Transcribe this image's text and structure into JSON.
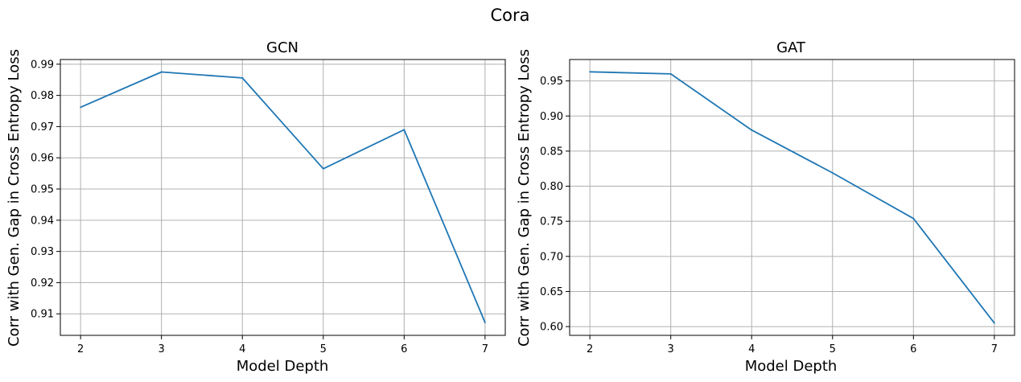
{
  "figure": {
    "title": "Cora"
  },
  "colors": {
    "series": "#1f77b4",
    "grid": "#b0b0b0"
  },
  "chart_data": [
    {
      "type": "line",
      "title": "GCN",
      "xlabel": "Model Depth",
      "ylabel": "Corr with Gen. Gap in Cross Entropy Loss",
      "x": [
        2,
        3,
        4,
        5,
        6,
        7
      ],
      "values": [
        0.9762,
        0.9875,
        0.9856,
        0.9565,
        0.969,
        0.9072
      ],
      "xlim": [
        1.75,
        7.25
      ],
      "ylim": [
        0.9031,
        0.9915
      ],
      "xticks": [
        2,
        3,
        4,
        5,
        6,
        7
      ],
      "yticks": [
        0.91,
        0.92,
        0.93,
        0.94,
        0.95,
        0.96,
        0.97,
        0.98,
        0.99
      ],
      "ytick_labels": [
        "0.91",
        "0.92",
        "0.93",
        "0.94",
        "0.95",
        "0.96",
        "0.97",
        "0.98",
        "0.99"
      ],
      "grid": true
    },
    {
      "type": "line",
      "title": "GAT",
      "xlabel": "Model Depth",
      "ylabel": "Corr with Gen. Gap in Cross Entropy Loss",
      "x": [
        2,
        3,
        4,
        5,
        6,
        7
      ],
      "values": [
        0.963,
        0.96,
        0.88,
        0.819,
        0.754,
        0.605
      ],
      "xlim": [
        1.75,
        7.25
      ],
      "ylim": [
        0.5875,
        0.9805
      ],
      "xticks": [
        2,
        3,
        4,
        5,
        6,
        7
      ],
      "yticks": [
        0.6,
        0.65,
        0.7,
        0.75,
        0.8,
        0.85,
        0.9,
        0.95
      ],
      "ytick_labels": [
        "0.60",
        "0.65",
        "0.70",
        "0.75",
        "0.80",
        "0.85",
        "0.90",
        "0.95"
      ],
      "grid": true
    }
  ]
}
